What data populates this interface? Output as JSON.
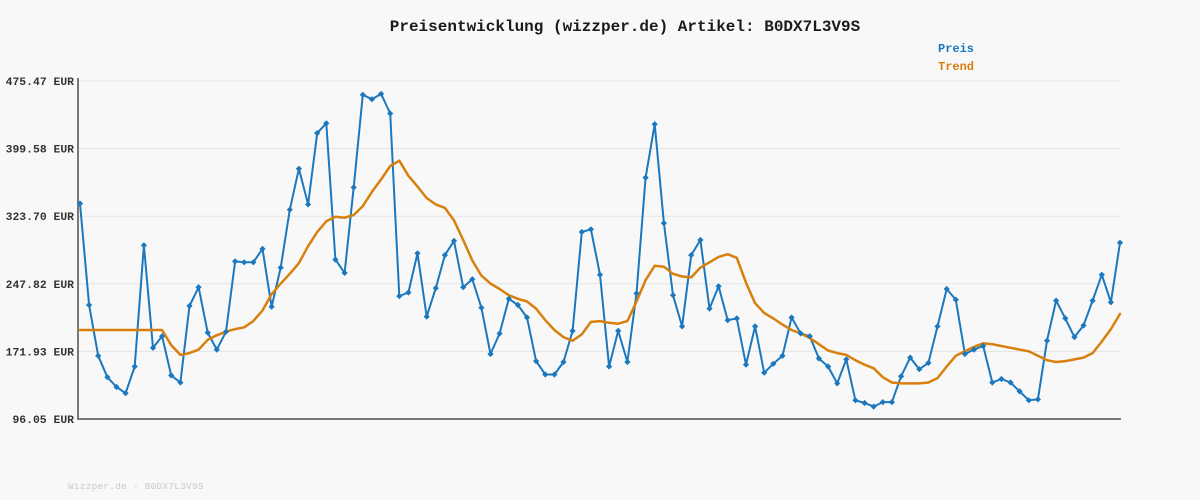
{
  "header": {
    "title": "Preisentwicklung (wizzper.de) Artikel: B0DX7L3V9S"
  },
  "legend": {
    "position": "top-right",
    "items": [
      {
        "label": "Preis",
        "color": "#1b78be"
      },
      {
        "label": "Trend",
        "color": "#d8800e"
      }
    ]
  },
  "footer": {
    "watermark": "Wizzper.de - B0DX7L3V9S"
  },
  "colors": {
    "background": "#f8f8f8",
    "grid": "#e4e4e4",
    "axis": "#787878",
    "price": "#1b78be",
    "trend": "#d8800e",
    "title_text": "#1b1b1b",
    "tick_text": "#333333",
    "watermark_text": "#c9c9c9"
  },
  "chart_data": {
    "type": "line",
    "title": "Preisentwicklung (wizzper.de) Artikel: B0DX7L3V9S",
    "unit": "EUR",
    "grid": "horizontal-only",
    "legend_position": "top-right-outside",
    "x_axis": {
      "label": "",
      "tick_labels": []
    },
    "y_axis": {
      "label": "",
      "range": [
        96.05,
        475.47
      ],
      "ticks": [
        {
          "label": "475.47 EUR",
          "value": 475.47
        },
        {
          "label": "399.58 EUR",
          "value": 399.58
        },
        {
          "label": "323.70 EUR",
          "value": 323.7
        },
        {
          "label": "247.82 EUR",
          "value": 247.82
        },
        {
          "label": "171.93 EUR",
          "value": 171.93
        },
        {
          "label": "96.05 EUR",
          "value": 96.05
        }
      ]
    },
    "series": [
      {
        "name": "Preis",
        "color": "#1b78be",
        "marker": "diamond",
        "line_width": 2,
        "values": [
          338,
          224,
          167,
          143,
          132,
          125,
          155,
          291,
          176,
          189,
          145,
          137,
          223,
          244,
          193,
          174,
          194,
          273,
          272,
          272,
          287,
          222,
          266,
          331,
          377,
          337,
          417,
          428,
          275,
          260,
          356,
          460,
          455,
          461,
          439,
          234,
          238,
          282,
          211,
          243,
          280,
          296,
          244,
          253,
          221,
          169,
          192,
          231,
          224,
          210,
          161,
          146,
          146,
          160,
          195,
          306,
          309,
          258,
          155,
          195,
          160,
          237,
          367,
          427,
          316,
          235,
          200,
          280,
          297,
          220,
          245,
          207,
          209,
          157,
          200,
          148,
          158,
          167,
          210,
          192,
          189,
          164,
          155,
          136,
          163,
          117,
          114,
          110,
          115,
          115,
          144,
          165,
          152,
          159,
          200,
          242,
          230,
          169,
          174,
          178,
          137,
          141,
          137,
          127,
          117,
          118,
          184,
          229,
          209,
          188,
          201,
          229,
          258,
          227,
          294
        ]
      },
      {
        "name": "Trend",
        "color": "#d8800e",
        "marker": "none",
        "line_width": 2.5,
        "values": [
          196,
          196,
          196,
          196,
          196,
          196,
          196,
          196,
          196,
          196,
          179,
          168,
          170,
          174,
          185,
          190,
          194,
          197,
          199,
          206,
          218,
          236,
          248,
          259,
          271,
          290,
          306,
          318,
          323,
          322,
          325,
          335,
          351,
          365,
          380,
          386,
          369,
          357,
          344,
          337,
          333,
          319,
          297,
          274,
          257,
          248,
          242,
          235,
          231,
          228,
          220,
          207,
          196,
          188,
          184,
          191,
          205,
          206,
          204,
          203,
          206,
          228,
          252,
          268,
          267,
          259,
          256,
          255,
          266,
          272,
          278,
          281,
          277,
          249,
          226,
          215,
          209,
          202,
          196,
          192,
          187,
          180,
          173,
          170,
          168,
          162,
          157,
          153,
          143,
          137,
          136,
          136,
          136,
          137,
          142,
          155,
          167,
          172,
          177,
          181,
          180,
          178,
          176,
          174,
          172,
          167,
          162,
          160,
          161,
          163,
          165,
          170,
          183,
          197,
          214
        ]
      }
    ]
  }
}
